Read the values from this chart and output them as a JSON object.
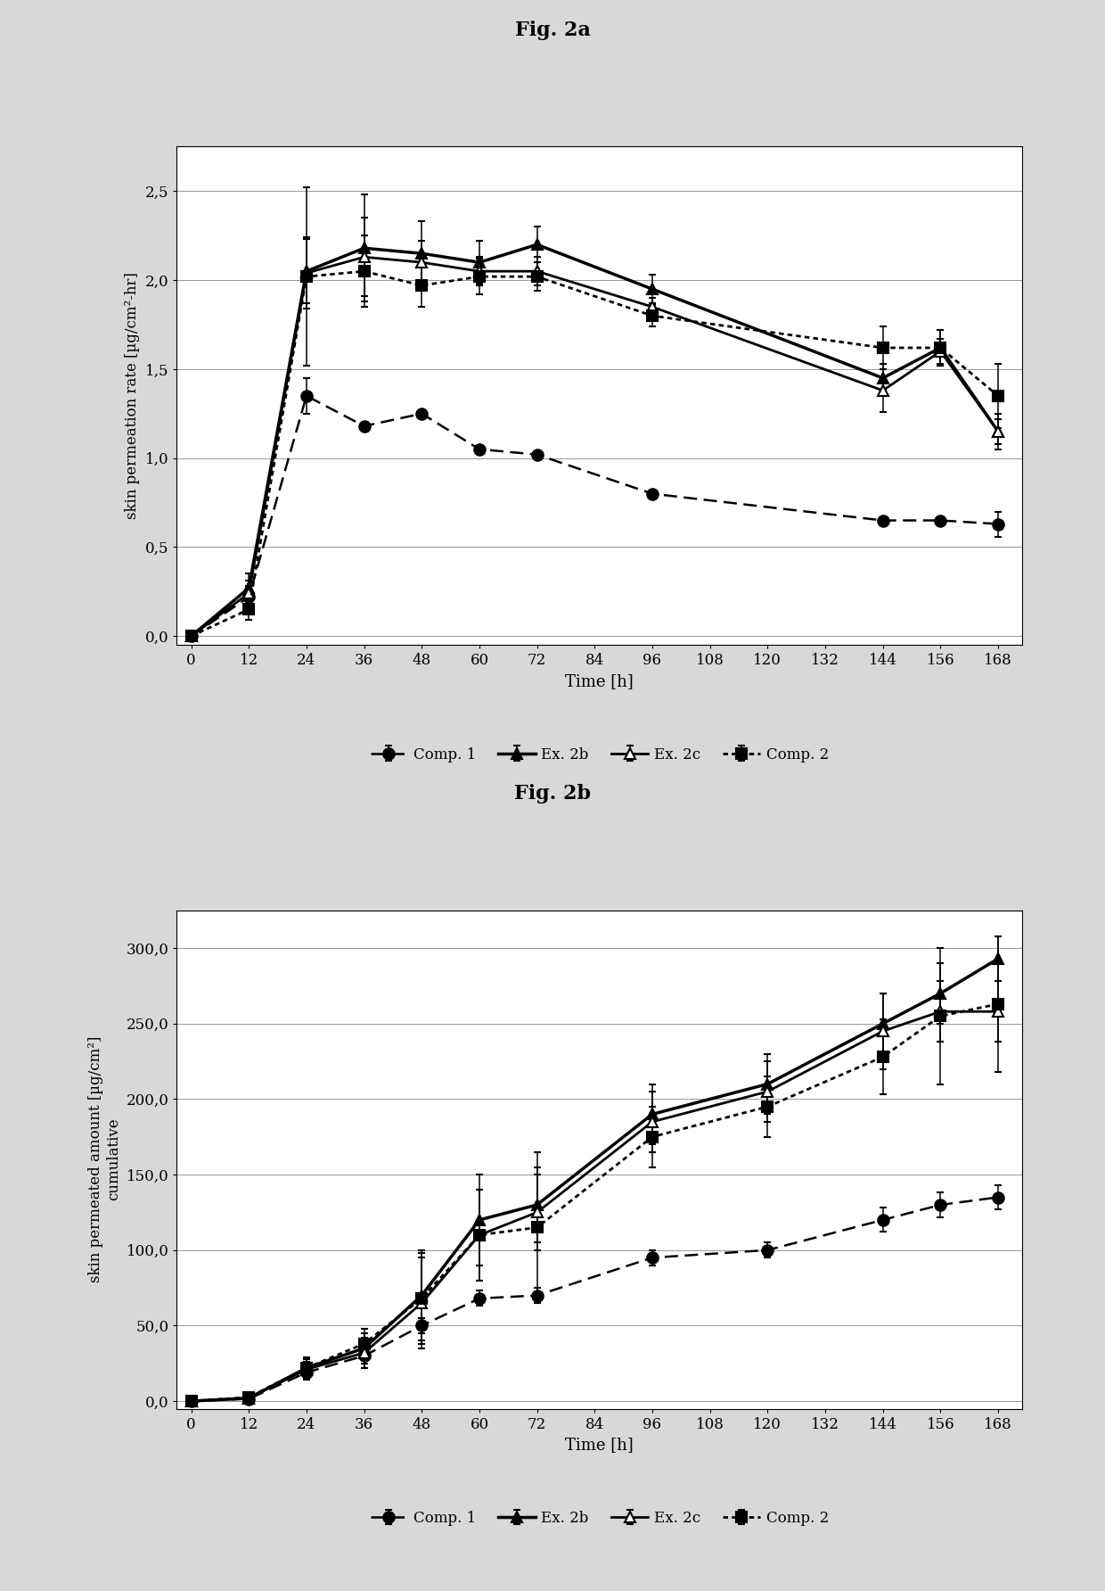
{
  "fig2a": {
    "title": "Fig. 2a",
    "xlabel": "Time [h]",
    "ylabel": "skin permeation rate [µg/cm²-hr]",
    "xlim": [
      -3,
      173
    ],
    "ylim": [
      -0.05,
      2.75
    ],
    "yticks": [
      0.0,
      0.5,
      1.0,
      1.5,
      2.0,
      2.5
    ],
    "xticks": [
      0,
      12,
      24,
      36,
      48,
      60,
      72,
      84,
      96,
      108,
      120,
      132,
      144,
      156,
      168
    ],
    "series": {
      "Comp. 1": {
        "x": [
          0,
          12,
          24,
          36,
          48,
          60,
          72,
          96,
          144,
          156,
          168
        ],
        "y": [
          0.0,
          0.22,
          1.35,
          1.18,
          1.25,
          1.05,
          1.02,
          0.8,
          0.65,
          0.65,
          0.63
        ],
        "yerr": [
          0.0,
          0.06,
          0.1,
          0.0,
          0.0,
          0.0,
          0.0,
          0.0,
          0.0,
          0.0,
          0.07
        ],
        "marker": "o",
        "marker_fill": "full",
        "linestyle": "dashed_dot",
        "linewidth": 1.8,
        "markersize": 9
      },
      "Ex. 2b": {
        "x": [
          0,
          12,
          24,
          36,
          48,
          60,
          72,
          96,
          144,
          156,
          168
        ],
        "y": [
          0.0,
          0.27,
          2.05,
          2.18,
          2.15,
          2.1,
          2.2,
          1.95,
          1.45,
          1.62,
          1.15
        ],
        "yerr": [
          0.0,
          0.08,
          0.18,
          0.3,
          0.18,
          0.12,
          0.1,
          0.08,
          0.08,
          0.1,
          0.1
        ],
        "marker": "^",
        "marker_fill": "full",
        "linestyle": "solid",
        "linewidth": 2.5,
        "markersize": 9
      },
      "Ex. 2c": {
        "x": [
          0,
          12,
          24,
          36,
          48,
          60,
          72,
          96,
          144,
          156,
          168
        ],
        "y": [
          0.0,
          0.24,
          2.04,
          2.13,
          2.1,
          2.05,
          2.05,
          1.85,
          1.38,
          1.6,
          1.15
        ],
        "yerr": [
          0.0,
          0.07,
          0.2,
          0.22,
          0.12,
          0.08,
          0.08,
          0.05,
          0.12,
          0.07,
          0.07
        ],
        "marker": "^",
        "marker_fill": "none",
        "linestyle": "solid",
        "linewidth": 2.0,
        "markersize": 9
      },
      "Comp. 2": {
        "x": [
          0,
          12,
          24,
          36,
          48,
          60,
          72,
          96,
          144,
          156,
          168
        ],
        "y": [
          0.0,
          0.15,
          2.02,
          2.05,
          1.97,
          2.02,
          2.02,
          1.8,
          1.62,
          1.62,
          1.35
        ],
        "yerr": [
          0.0,
          0.06,
          0.5,
          0.2,
          0.12,
          0.1,
          0.08,
          0.06,
          0.12,
          0.1,
          0.18
        ],
        "marker": "s",
        "marker_fill": "full",
        "linestyle": "densely_dotted",
        "linewidth": 2.0,
        "markersize": 8
      }
    },
    "legend_order": [
      "Comp. 1",
      "Ex. 2b",
      "Ex. 2c",
      "Comp. 2"
    ]
  },
  "fig2b": {
    "title": "Fig. 2b",
    "xlabel": "Time [h]",
    "ylabel": "skin permeated amount [µg/cm²]\ncumulative",
    "xlim": [
      -3,
      173
    ],
    "ylim": [
      -5,
      325
    ],
    "yticks": [
      0.0,
      50.0,
      100.0,
      150.0,
      200.0,
      250.0,
      300.0
    ],
    "xticks": [
      0,
      12,
      24,
      36,
      48,
      60,
      72,
      84,
      96,
      108,
      120,
      132,
      144,
      156,
      168
    ],
    "series": {
      "Comp. 1": {
        "x": [
          0,
          12,
          24,
          36,
          48,
          60,
          72,
          96,
          120,
          144,
          156,
          168
        ],
        "y": [
          0.0,
          1.5,
          19.0,
          30.0,
          50.0,
          68.0,
          70.0,
          95.0,
          100.0,
          120.0,
          130.0,
          135.0
        ],
        "yerr": [
          0.0,
          0.5,
          5.0,
          8.0,
          5.0,
          5.0,
          5.0,
          5.0,
          5.0,
          8.0,
          8.0,
          8.0
        ],
        "marker": "o",
        "marker_fill": "full",
        "linestyle": "dashed_dot",
        "linewidth": 1.8,
        "markersize": 9
      },
      "Ex. 2b": {
        "x": [
          0,
          12,
          24,
          36,
          48,
          60,
          72,
          96,
          120,
          144,
          156,
          168
        ],
        "y": [
          0.0,
          2.0,
          22.0,
          35.0,
          70.0,
          120.0,
          130.0,
          190.0,
          210.0,
          250.0,
          270.0,
          293.0
        ],
        "yerr": [
          0.0,
          1.0,
          6.0,
          10.0,
          30.0,
          30.0,
          25.0,
          20.0,
          20.0,
          20.0,
          20.0,
          15.0
        ],
        "marker": "^",
        "marker_fill": "full",
        "linestyle": "solid",
        "linewidth": 2.5,
        "markersize": 9
      },
      "Ex. 2c": {
        "x": [
          0,
          12,
          24,
          36,
          48,
          60,
          72,
          96,
          120,
          144,
          156,
          168
        ],
        "y": [
          0.0,
          2.0,
          21.0,
          32.0,
          65.0,
          110.0,
          125.0,
          185.0,
          205.0,
          245.0,
          258.0,
          258.0
        ],
        "yerr": [
          0.0,
          1.0,
          5.0,
          10.0,
          30.0,
          30.0,
          25.0,
          20.0,
          20.0,
          25.0,
          20.0,
          20.0
        ],
        "marker": "^",
        "marker_fill": "none",
        "linestyle": "solid",
        "linewidth": 2.0,
        "markersize": 9
      },
      "Comp. 2": {
        "x": [
          0,
          12,
          24,
          36,
          48,
          60,
          72,
          96,
          120,
          144,
          156,
          168
        ],
        "y": [
          0.0,
          2.5,
          22.0,
          38.0,
          68.0,
          110.0,
          115.0,
          175.0,
          195.0,
          228.0,
          255.0,
          263.0
        ],
        "yerr": [
          0.0,
          1.0,
          7.0,
          10.0,
          30.0,
          30.0,
          50.0,
          20.0,
          20.0,
          25.0,
          45.0,
          45.0
        ],
        "marker": "s",
        "marker_fill": "full",
        "linestyle": "densely_dotted",
        "linewidth": 2.0,
        "markersize": 8
      }
    },
    "legend_order": [
      "Comp. 1",
      "Ex. 2b",
      "Ex. 2c",
      "Comp. 2"
    ]
  },
  "page_bg": "#d8d8d8",
  "plot_bg": "#ffffff",
  "title_fontsize": 16,
  "axis_label_fontsize": 13,
  "tick_fontsize": 12,
  "legend_fontsize": 12
}
